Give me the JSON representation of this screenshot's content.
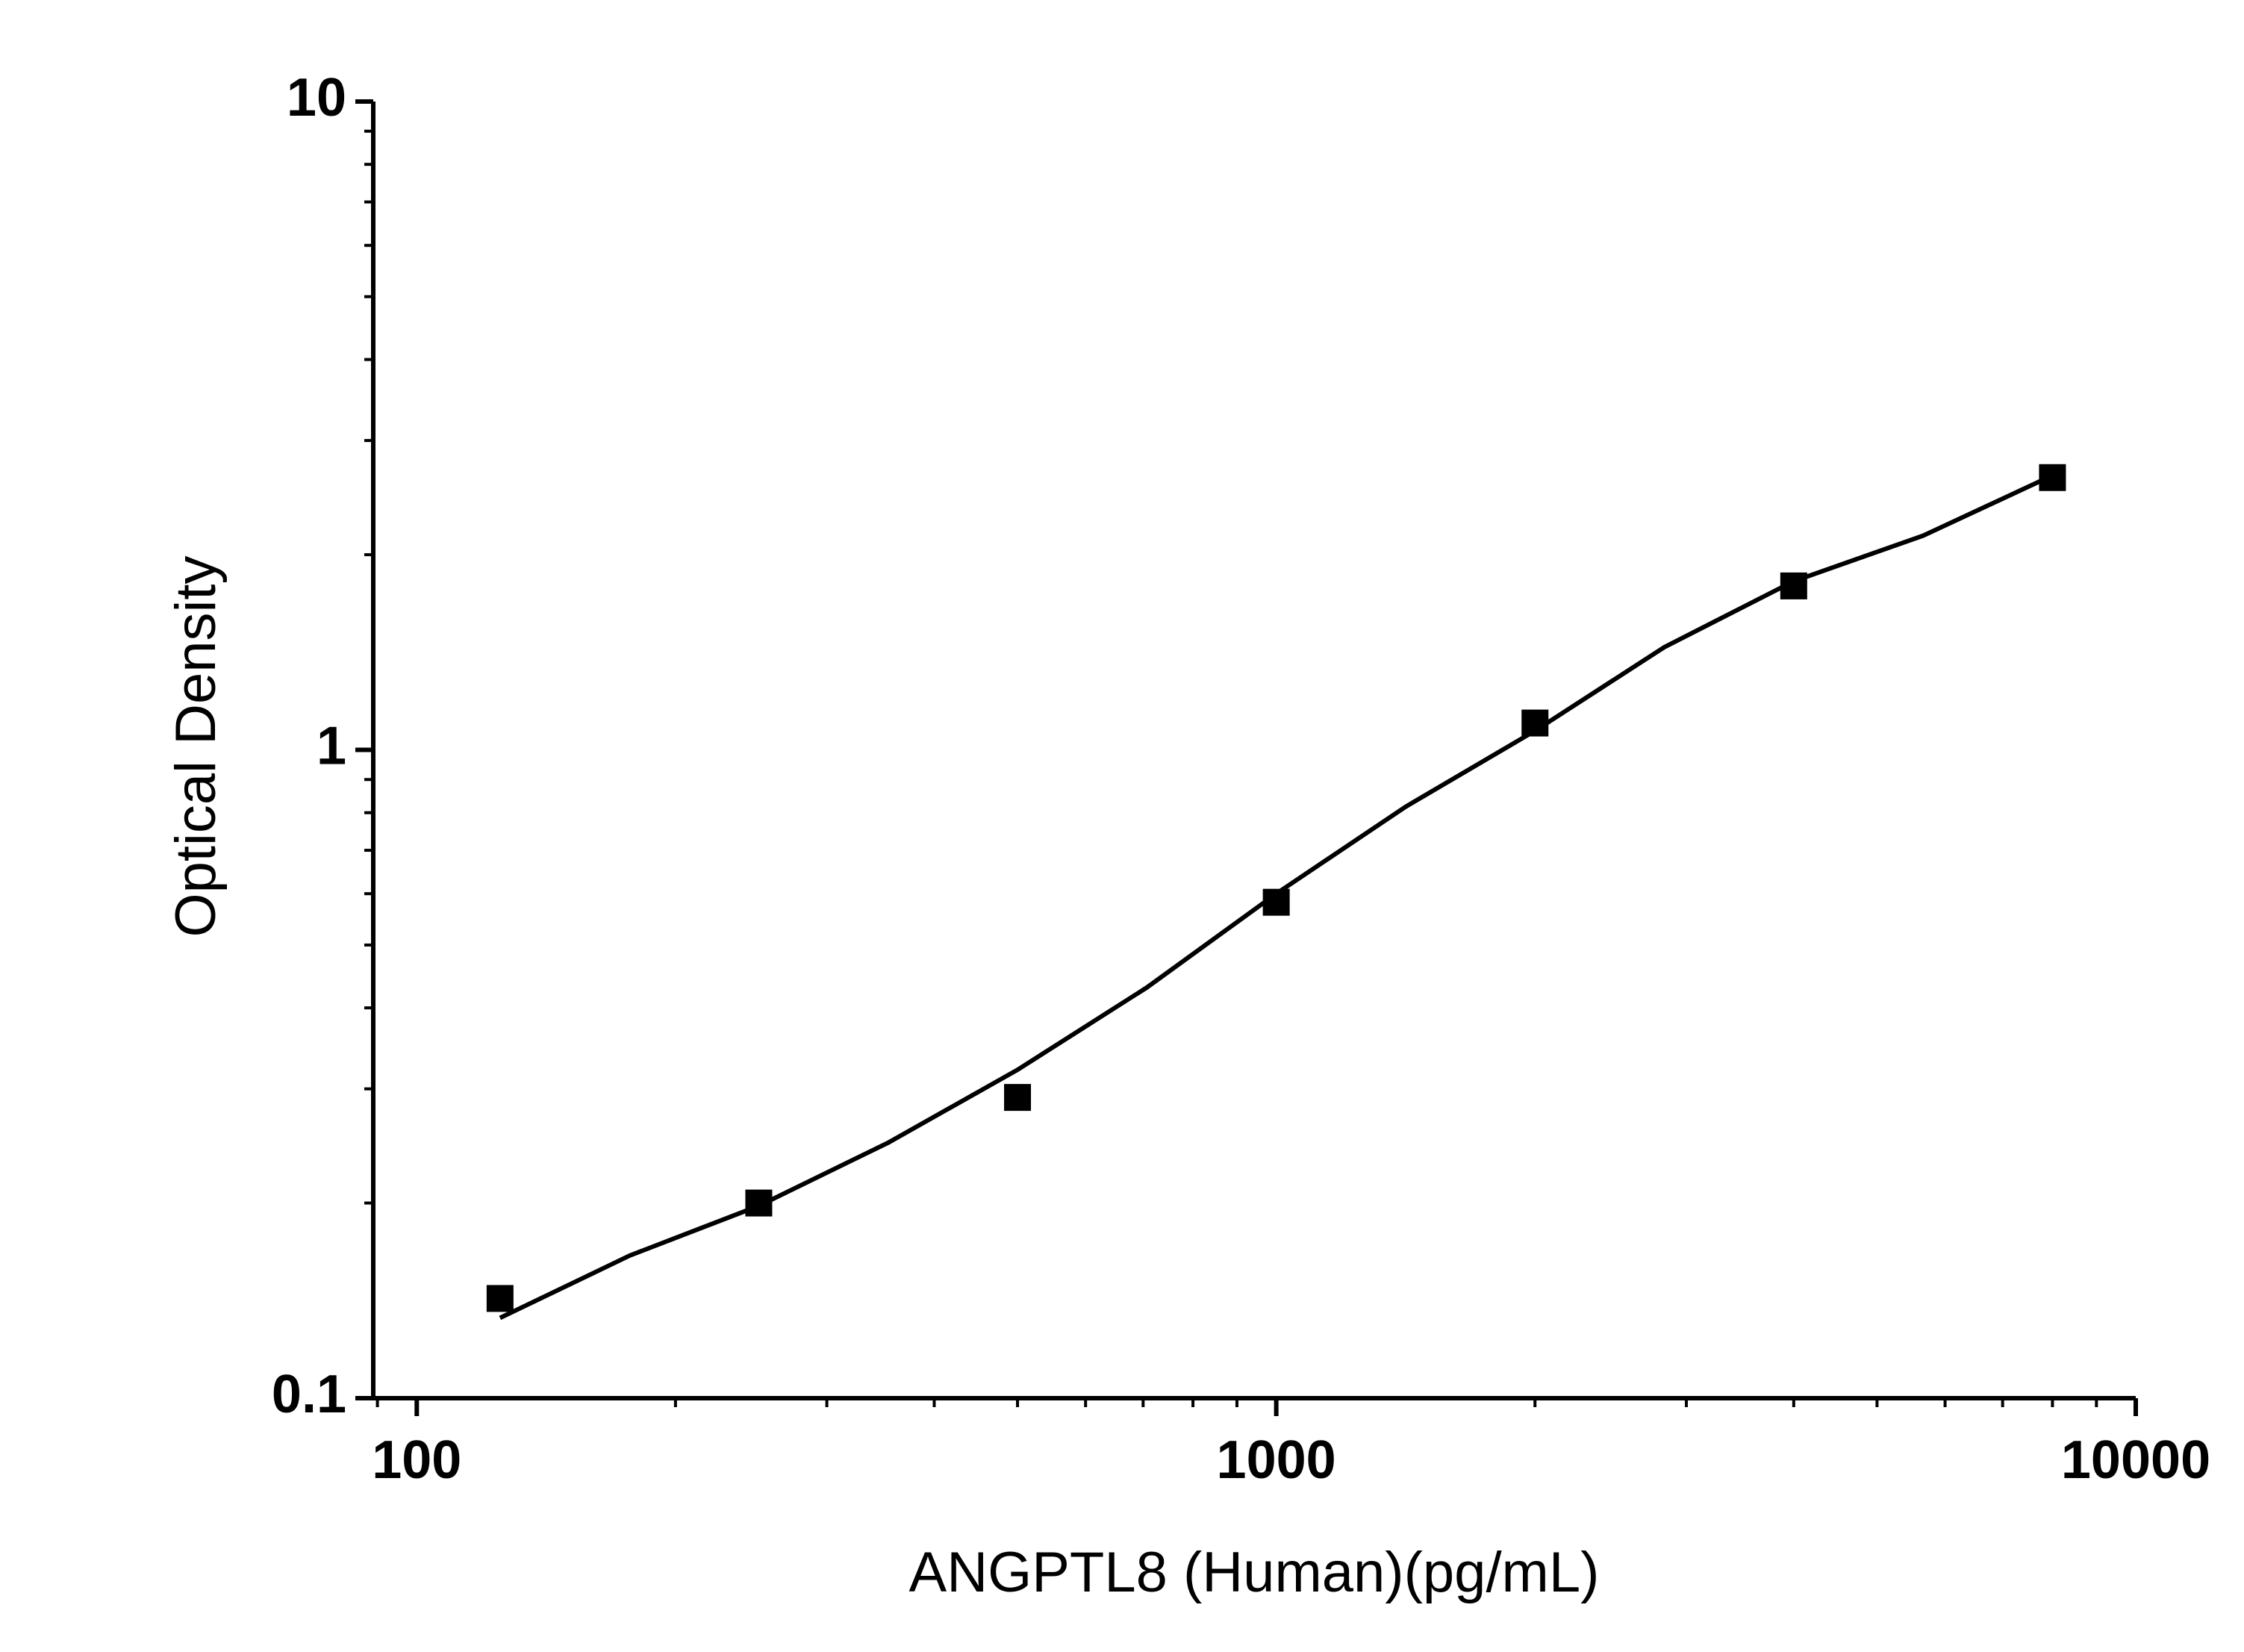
{
  "chart_data": {
    "type": "scatter",
    "x_label": "ANGPTL8 (Human)(pg/mL)",
    "y_label": "Optical Density",
    "xscale": "log",
    "yscale": "log",
    "xlim": [
      89,
      10000
    ],
    "ylim": [
      0.1,
      10
    ],
    "xticks": [
      100,
      1000,
      10000
    ],
    "yticks": [
      0.1,
      1,
      10
    ],
    "grid": false,
    "series": [
      {
        "mode": "markers",
        "color": "#000000",
        "x": [
          125,
          250,
          500,
          1000,
          2000,
          4000,
          8000
        ],
        "values": [
          0.1425,
          0.2,
          0.291,
          0.582,
          1.1,
          1.79,
          2.63
        ]
      },
      {
        "mode": "line",
        "color": "#000000",
        "x": [
          125,
          177,
          250,
          354,
          500,
          707,
          1000,
          1414,
          2000,
          2828,
          4000,
          5657,
          8000
        ],
        "values": [
          0.133,
          0.166,
          0.198,
          0.248,
          0.321,
          0.43,
          0.6,
          0.817,
          1.07,
          1.44,
          1.82,
          2.14,
          2.65
        ]
      }
    ]
  }
}
